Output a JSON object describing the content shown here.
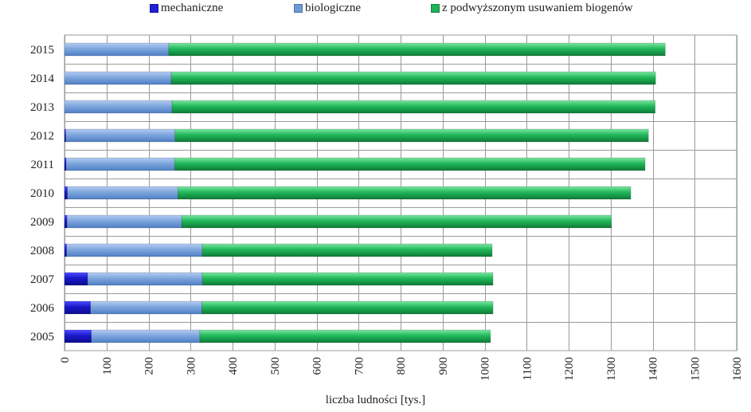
{
  "chart_data": {
    "type": "bar",
    "orientation": "horizontal",
    "stacked": true,
    "title": "",
    "xlabel": "liczba ludności [tys.]",
    "ylabel": "",
    "xlim": [
      0,
      1600
    ],
    "x_ticks": [
      0,
      100,
      200,
      300,
      400,
      500,
      600,
      700,
      800,
      900,
      1000,
      1100,
      1200,
      1300,
      1400,
      1500,
      1600
    ],
    "grid": true,
    "legend_position": "top",
    "categories": [
      "2015",
      "2014",
      "2013",
      "2012",
      "2011",
      "2010",
      "2009",
      "2008",
      "2007",
      "2006",
      "2005"
    ],
    "series": [
      {
        "name": "mechaniczne",
        "color": "#1f1fd6",
        "values": [
          0,
          0,
          0,
          3,
          4,
          7,
          6,
          5,
          55,
          62,
          64
        ]
      },
      {
        "name": "biologiczne",
        "color": "#6f9ad8",
        "values": [
          248,
          254,
          256,
          260,
          258,
          263,
          273,
          323,
          273,
          265,
          258
        ]
      },
      {
        "name": "z podwyższonym usuwaniem biogenów",
        "color": "#1fb256",
        "values": [
          1182,
          1153,
          1150,
          1127,
          1120,
          1078,
          1023,
          690,
          692,
          693,
          692
        ]
      }
    ]
  }
}
